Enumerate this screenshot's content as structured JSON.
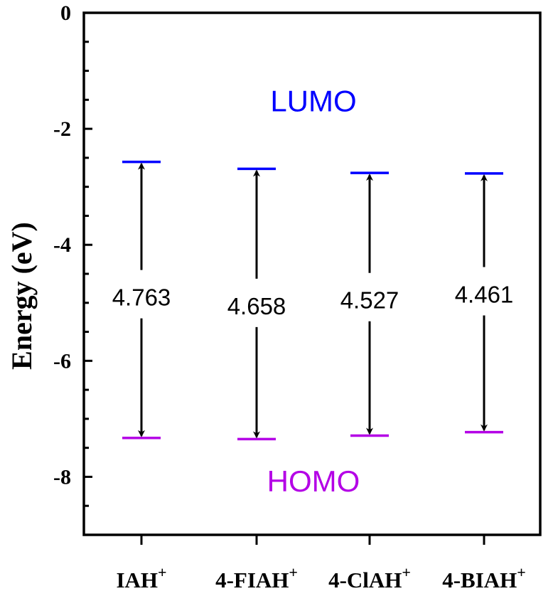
{
  "chart_data": {
    "type": "energy-level diagram",
    "ylabel": "Energy (eV)",
    "ylim": [
      -9,
      0
    ],
    "yticks": [
      0,
      -2,
      -4,
      -6,
      -8
    ],
    "categories": [
      {
        "name": "IAH",
        "sup": "+"
      },
      {
        "name": "4-FIAH",
        "sup": "+"
      },
      {
        "name": "4-ClAH",
        "sup": "+"
      },
      {
        "name": "4-BIAH",
        "sup": "+"
      }
    ],
    "series": [
      {
        "name": "LUMO",
        "color": "#0000ff",
        "values": [
          -2.57,
          -2.69,
          -2.76,
          -2.77
        ]
      },
      {
        "name": "HOMO",
        "color": "#b400e6",
        "values": [
          -7.33,
          -7.35,
          -7.29,
          -7.23
        ]
      }
    ],
    "gap_labels": [
      "4.763",
      "4.658",
      "4.527",
      "4.461"
    ],
    "gap_label_y": [
      -4.9,
      -5.05,
      -4.95,
      -4.85
    ],
    "orbital_labels": {
      "lumo": {
        "text": "LUMO",
        "color": "#0000ff",
        "y": -1.7
      },
      "homo": {
        "text": "HOMO",
        "color": "#b400e6",
        "y": -8.25
      }
    }
  }
}
